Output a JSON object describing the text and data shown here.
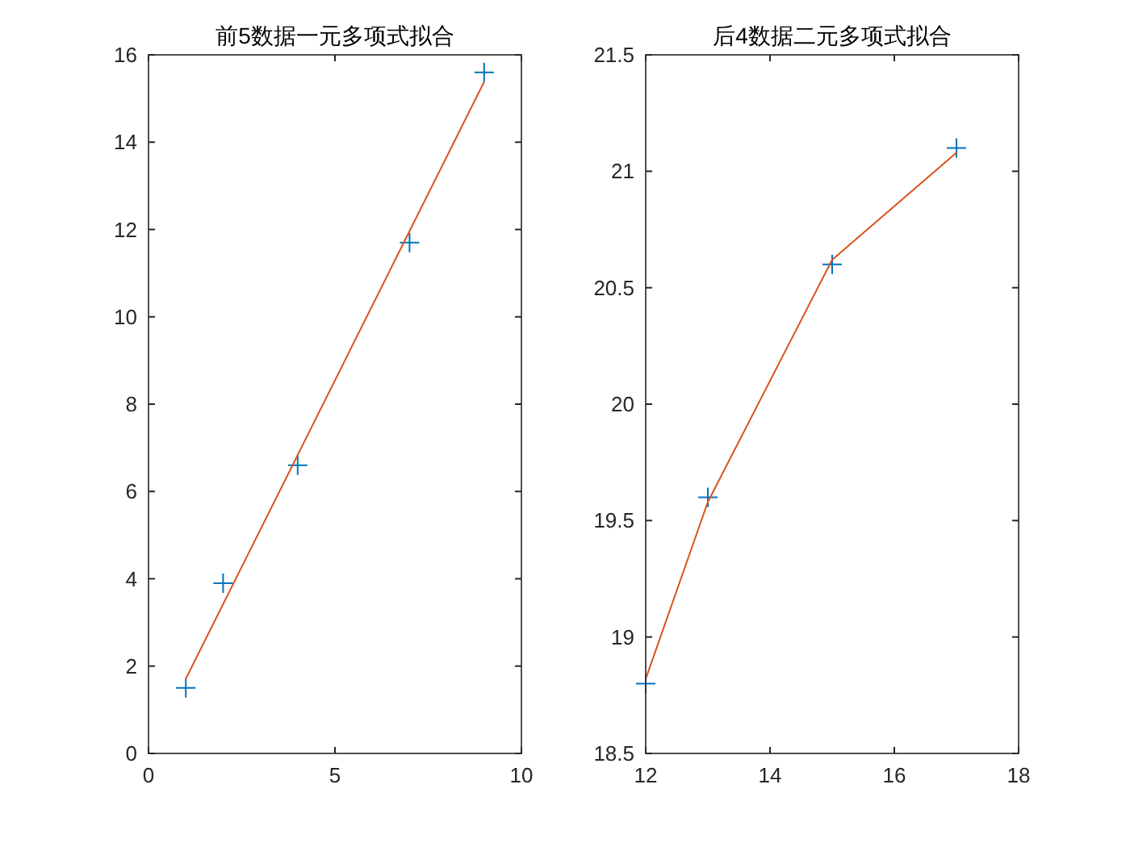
{
  "chart_data": [
    {
      "type": "scatter",
      "title": "前5数据一元多项式拟合",
      "xlim": [
        0,
        10
      ],
      "xticks": [
        0,
        5,
        10
      ],
      "ylim": [
        0,
        16
      ],
      "yticks": [
        0,
        2,
        4,
        6,
        8,
        10,
        12,
        14,
        16
      ],
      "grid": false,
      "series": [
        {
          "marker": "cross",
          "color": "#0072bd",
          "x": [
            1,
            2,
            4,
            7,
            9
          ],
          "values": [
            1.5,
            3.9,
            6.6,
            11.7,
            15.6
          ]
        },
        {
          "type": "line",
          "marker": "none",
          "line_style": "solid",
          "color": "#d95319",
          "x": [
            1,
            9
          ],
          "values": [
            1.71,
            15.38
          ]
        }
      ]
    },
    {
      "type": "scatter",
      "title": "后4数据二元多项式拟合",
      "xlim": [
        12,
        18
      ],
      "xticks": [
        12,
        14,
        16,
        18
      ],
      "ylim": [
        18.5,
        21.5
      ],
      "yticks": [
        18.5,
        19,
        19.5,
        20,
        20.5,
        21,
        21.5
      ],
      "grid": false,
      "series": [
        {
          "marker": "cross",
          "color": "#0072bd",
          "x": [
            12,
            13,
            15,
            17
          ],
          "values": [
            18.8,
            19.6,
            20.6,
            21.1
          ]
        },
        {
          "type": "line",
          "marker": "none",
          "line_style": "solid",
          "color": "#d95319",
          "x": [
            12,
            13,
            15,
            17
          ],
          "values": [
            18.82,
            19.58,
            20.62,
            21.08
          ]
        }
      ]
    }
  ]
}
